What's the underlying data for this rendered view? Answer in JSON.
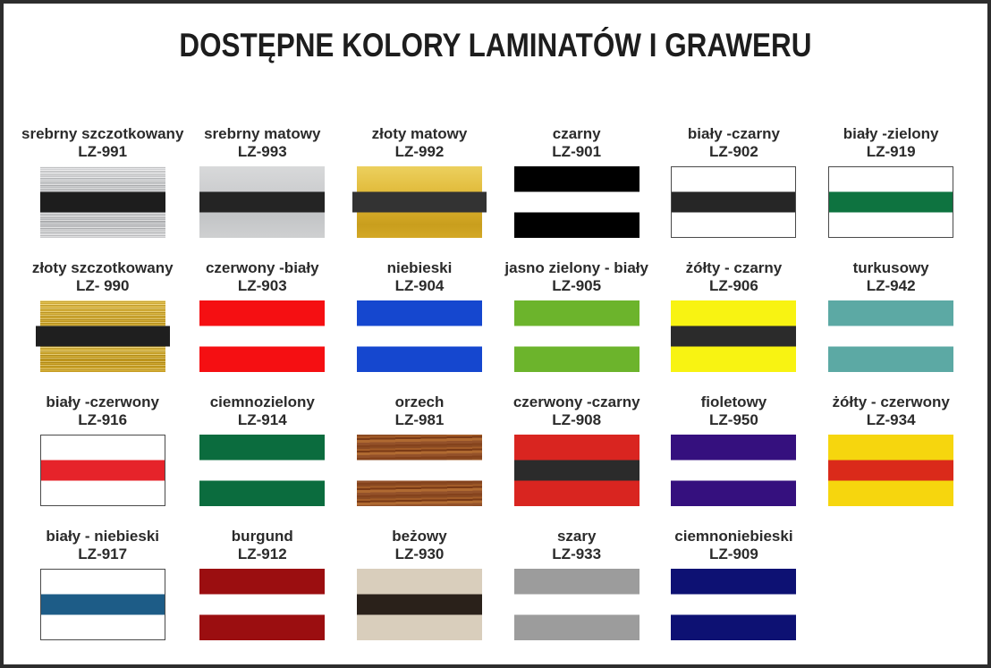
{
  "title": "DOSTĘPNE KOLORY LAMINATÓW I GRAWERU",
  "colors": {
    "frame_border": "#2d2d2d",
    "label_text": "#2b2b2b"
  },
  "swatches": [
    {
      "name": "srebrny szczotkowany",
      "code": "LZ-991",
      "texture": "brushed-silver",
      "base": "",
      "stripe": "#1d1d1d",
      "border": false,
      "overhang": false
    },
    {
      "name": "srebrny matowy",
      "code": "LZ-993",
      "texture": "matte-silver",
      "base": "",
      "stripe": "#242424",
      "border": false,
      "overhang": false
    },
    {
      "name": "złoty matowy",
      "code": "LZ-992",
      "texture": "matte-gold",
      "base": "",
      "stripe": "#333333",
      "border": false,
      "overhang": true
    },
    {
      "name": "czarny",
      "code": "LZ-901",
      "texture": "",
      "base": "#000000",
      "stripe": "#ffffff",
      "border": false,
      "overhang": false
    },
    {
      "name": "biały -czarny",
      "code": "LZ-902",
      "texture": "",
      "base": "#ffffff",
      "stripe": "#262626",
      "border": true,
      "overhang": false
    },
    {
      "name": "biały -zielony",
      "code": "LZ-919",
      "texture": "",
      "base": "#ffffff",
      "stripe": "#0e7340",
      "border": true,
      "overhang": false
    },
    {
      "name": "złoty szczotkowany",
      "code": "LZ- 990",
      "texture": "brushed-gold",
      "base": "",
      "stripe": "#1f1f1f",
      "border": false,
      "overhang": true
    },
    {
      "name": "czerwony -biały",
      "code": "LZ-903",
      "texture": "",
      "base": "#f50f12",
      "stripe": "#ffffff",
      "border": false,
      "overhang": false
    },
    {
      "name": "niebieski",
      "code": "LZ-904",
      "texture": "",
      "base": "#1547cf",
      "stripe": "#ffffff",
      "border": false,
      "overhang": false
    },
    {
      "name": "jasno zielony - biały",
      "code": "LZ-905",
      "texture": "",
      "base": "#6cb42c",
      "stripe": "#ffffff",
      "border": false,
      "overhang": false
    },
    {
      "name": "żółty - czarny",
      "code": "LZ-906",
      "texture": "",
      "base": "#f8f312",
      "stripe": "#2b2b2b",
      "border": false,
      "overhang": false
    },
    {
      "name": "turkusowy",
      "code": "LZ-942",
      "texture": "",
      "base": "#5ca9a4",
      "stripe": "#ffffff",
      "border": false,
      "overhang": false
    },
    {
      "name": "biały -czerwony",
      "code": "LZ-916",
      "texture": "",
      "base": "#ffffff",
      "stripe": "#e6232a",
      "border": true,
      "overhang": false
    },
    {
      "name": "ciemnozielony",
      "code": "LZ-914",
      "texture": "",
      "base": "#0b6c3e",
      "stripe": "#ffffff",
      "border": false,
      "overhang": false
    },
    {
      "name": "orzech",
      "code": "LZ-981",
      "texture": "wood",
      "base": "",
      "stripe": "#ffffff",
      "border": false,
      "overhang": false
    },
    {
      "name": "czerwony -czarny",
      "code": "LZ-908",
      "texture": "",
      "base": "#d92520",
      "stripe": "#2b2b2b",
      "border": false,
      "overhang": false
    },
    {
      "name": "fioletowy",
      "code": "LZ-950",
      "texture": "",
      "base": "#35107e",
      "stripe": "#ffffff",
      "border": false,
      "overhang": false
    },
    {
      "name": "żółty - czerwony",
      "code": "LZ-934",
      "texture": "",
      "base": "#f6d60e",
      "stripe": "#da2a1a",
      "border": false,
      "overhang": false
    },
    {
      "name": "biały - niebieski",
      "code": "LZ-917",
      "texture": "",
      "base": "#ffffff",
      "stripe": "#1d5c87",
      "border": true,
      "overhang": false
    },
    {
      "name": "burgund",
      "code": "LZ-912",
      "texture": "",
      "base": "#9b0e10",
      "stripe": "#ffffff",
      "border": false,
      "overhang": false
    },
    {
      "name": "beżowy",
      "code": "LZ-930",
      "texture": "",
      "base": "#d9cebc",
      "stripe": "#2a211a",
      "border": false,
      "overhang": false
    },
    {
      "name": "szary",
      "code": "LZ-933",
      "texture": "",
      "base": "#9c9c9c",
      "stripe": "#ffffff",
      "border": false,
      "overhang": false
    },
    {
      "name": "ciemnoniebieski",
      "code": "LZ-909",
      "texture": "",
      "base": "#0d1173",
      "stripe": "#ffffff",
      "border": false,
      "overhang": false
    }
  ]
}
